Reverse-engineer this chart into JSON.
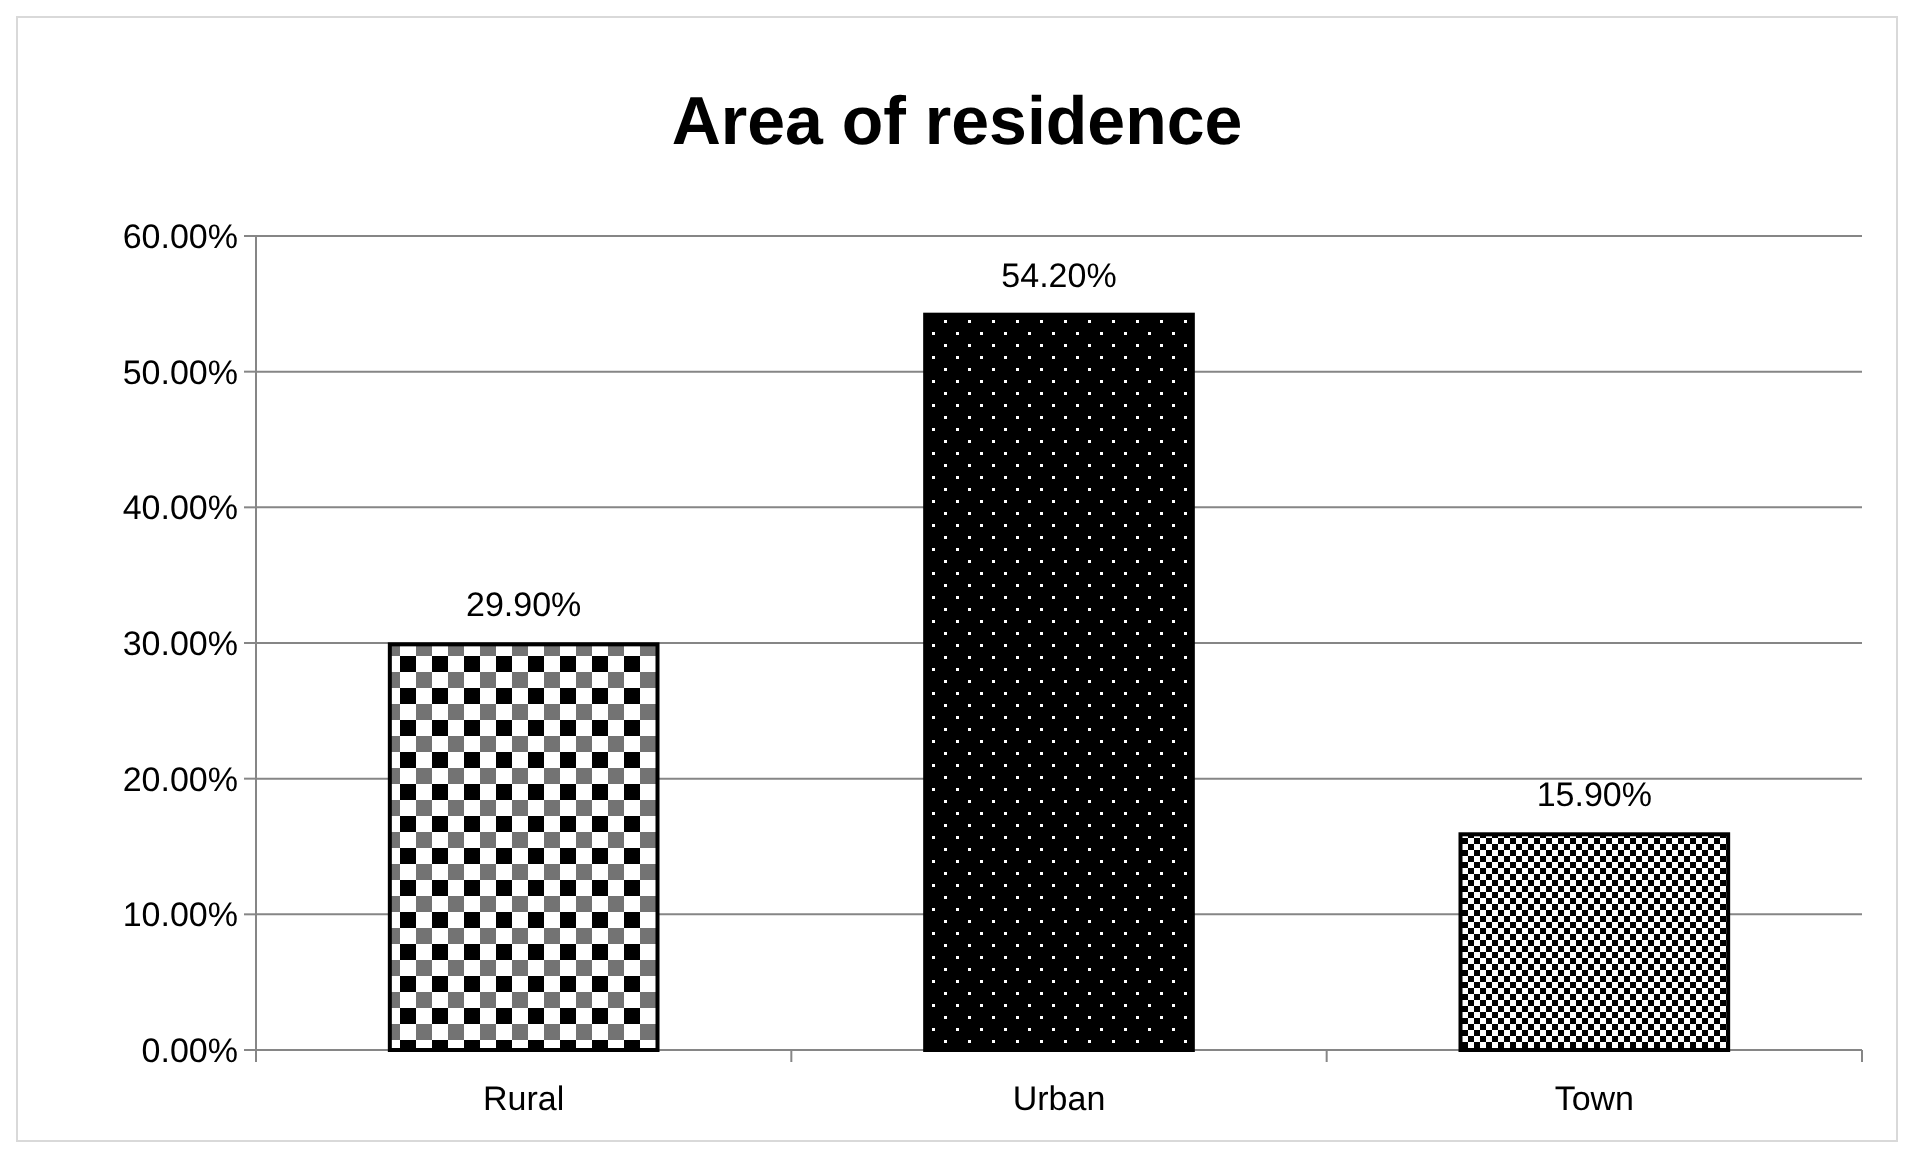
{
  "chart_data": {
    "type": "bar",
    "title": "Area of residence",
    "categories": [
      "Rural",
      "Urban",
      "Town"
    ],
    "values": [
      29.9,
      54.2,
      15.9
    ],
    "colors": [
      "#000000",
      "#000000",
      "#000000"
    ],
    "value_labels": [
      "29.90%",
      "54.20%",
      "15.90%"
    ],
    "ylim": [
      0,
      60
    ],
    "yticks": [
      {
        "value": 0,
        "label": "0.00%"
      },
      {
        "value": 10,
        "label": "10.00%"
      },
      {
        "value": 20,
        "label": "20.00%"
      },
      {
        "value": 30,
        "label": "30.00%"
      },
      {
        "value": 40,
        "label": "40.00%"
      },
      {
        "value": 50,
        "label": "50.00%"
      },
      {
        "value": 60,
        "label": "60.00%"
      }
    ],
    "grid": "y"
  }
}
